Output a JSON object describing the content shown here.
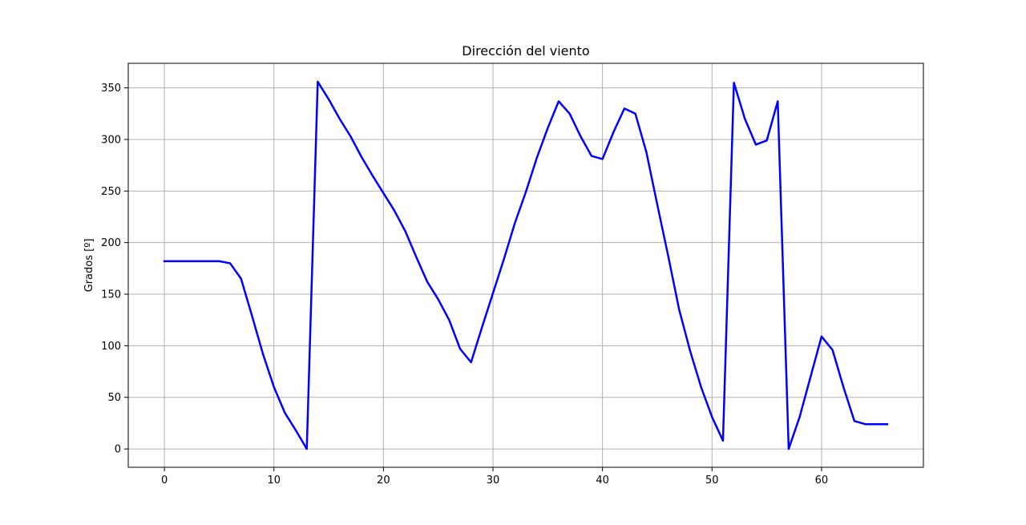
{
  "chart_data": {
    "type": "line",
    "title": "Dirección del viento",
    "xlabel": "",
    "ylabel": "Grados [º]",
    "xlim": [
      -3.3,
      69.3
    ],
    "ylim": [
      -17.8,
      373.8
    ],
    "xticks": [
      0,
      10,
      20,
      30,
      40,
      50,
      60
    ],
    "yticks": [
      0,
      50,
      100,
      150,
      200,
      250,
      300,
      350
    ],
    "grid": true,
    "color": "#0000ff",
    "series": [
      {
        "x": [
          0,
          1,
          2,
          3,
          4,
          5,
          6,
          7,
          8,
          9,
          10,
          11,
          12,
          13,
          14,
          15,
          16,
          17,
          18,
          19,
          20,
          21,
          22,
          23,
          24,
          25,
          26,
          27,
          28,
          29,
          30,
          31,
          32,
          33,
          34,
          35,
          36,
          37,
          38,
          39,
          40,
          41,
          42,
          43,
          44,
          45,
          46,
          47,
          48,
          49,
          50,
          51,
          52,
          53,
          54,
          55,
          56,
          57,
          58,
          59,
          60,
          61,
          62,
          63,
          64,
          65,
          66
        ],
        "values": [
          182,
          182,
          182,
          182,
          182,
          182,
          180,
          165,
          129,
          92,
          60,
          35,
          18,
          0,
          356,
          339,
          320,
          303,
          283,
          265,
          248,
          231,
          211,
          186,
          162,
          145,
          125,
          97,
          84,
          118,
          151,
          184,
          219,
          249,
          282,
          311,
          337,
          325,
          303,
          284,
          281,
          307,
          330,
          325,
          288,
          237,
          187,
          135,
          95,
          60,
          31,
          8,
          355,
          320,
          295,
          299,
          337,
          0,
          31,
          70,
          109,
          96,
          60,
          27,
          24,
          24,
          24
        ]
      }
    ]
  }
}
